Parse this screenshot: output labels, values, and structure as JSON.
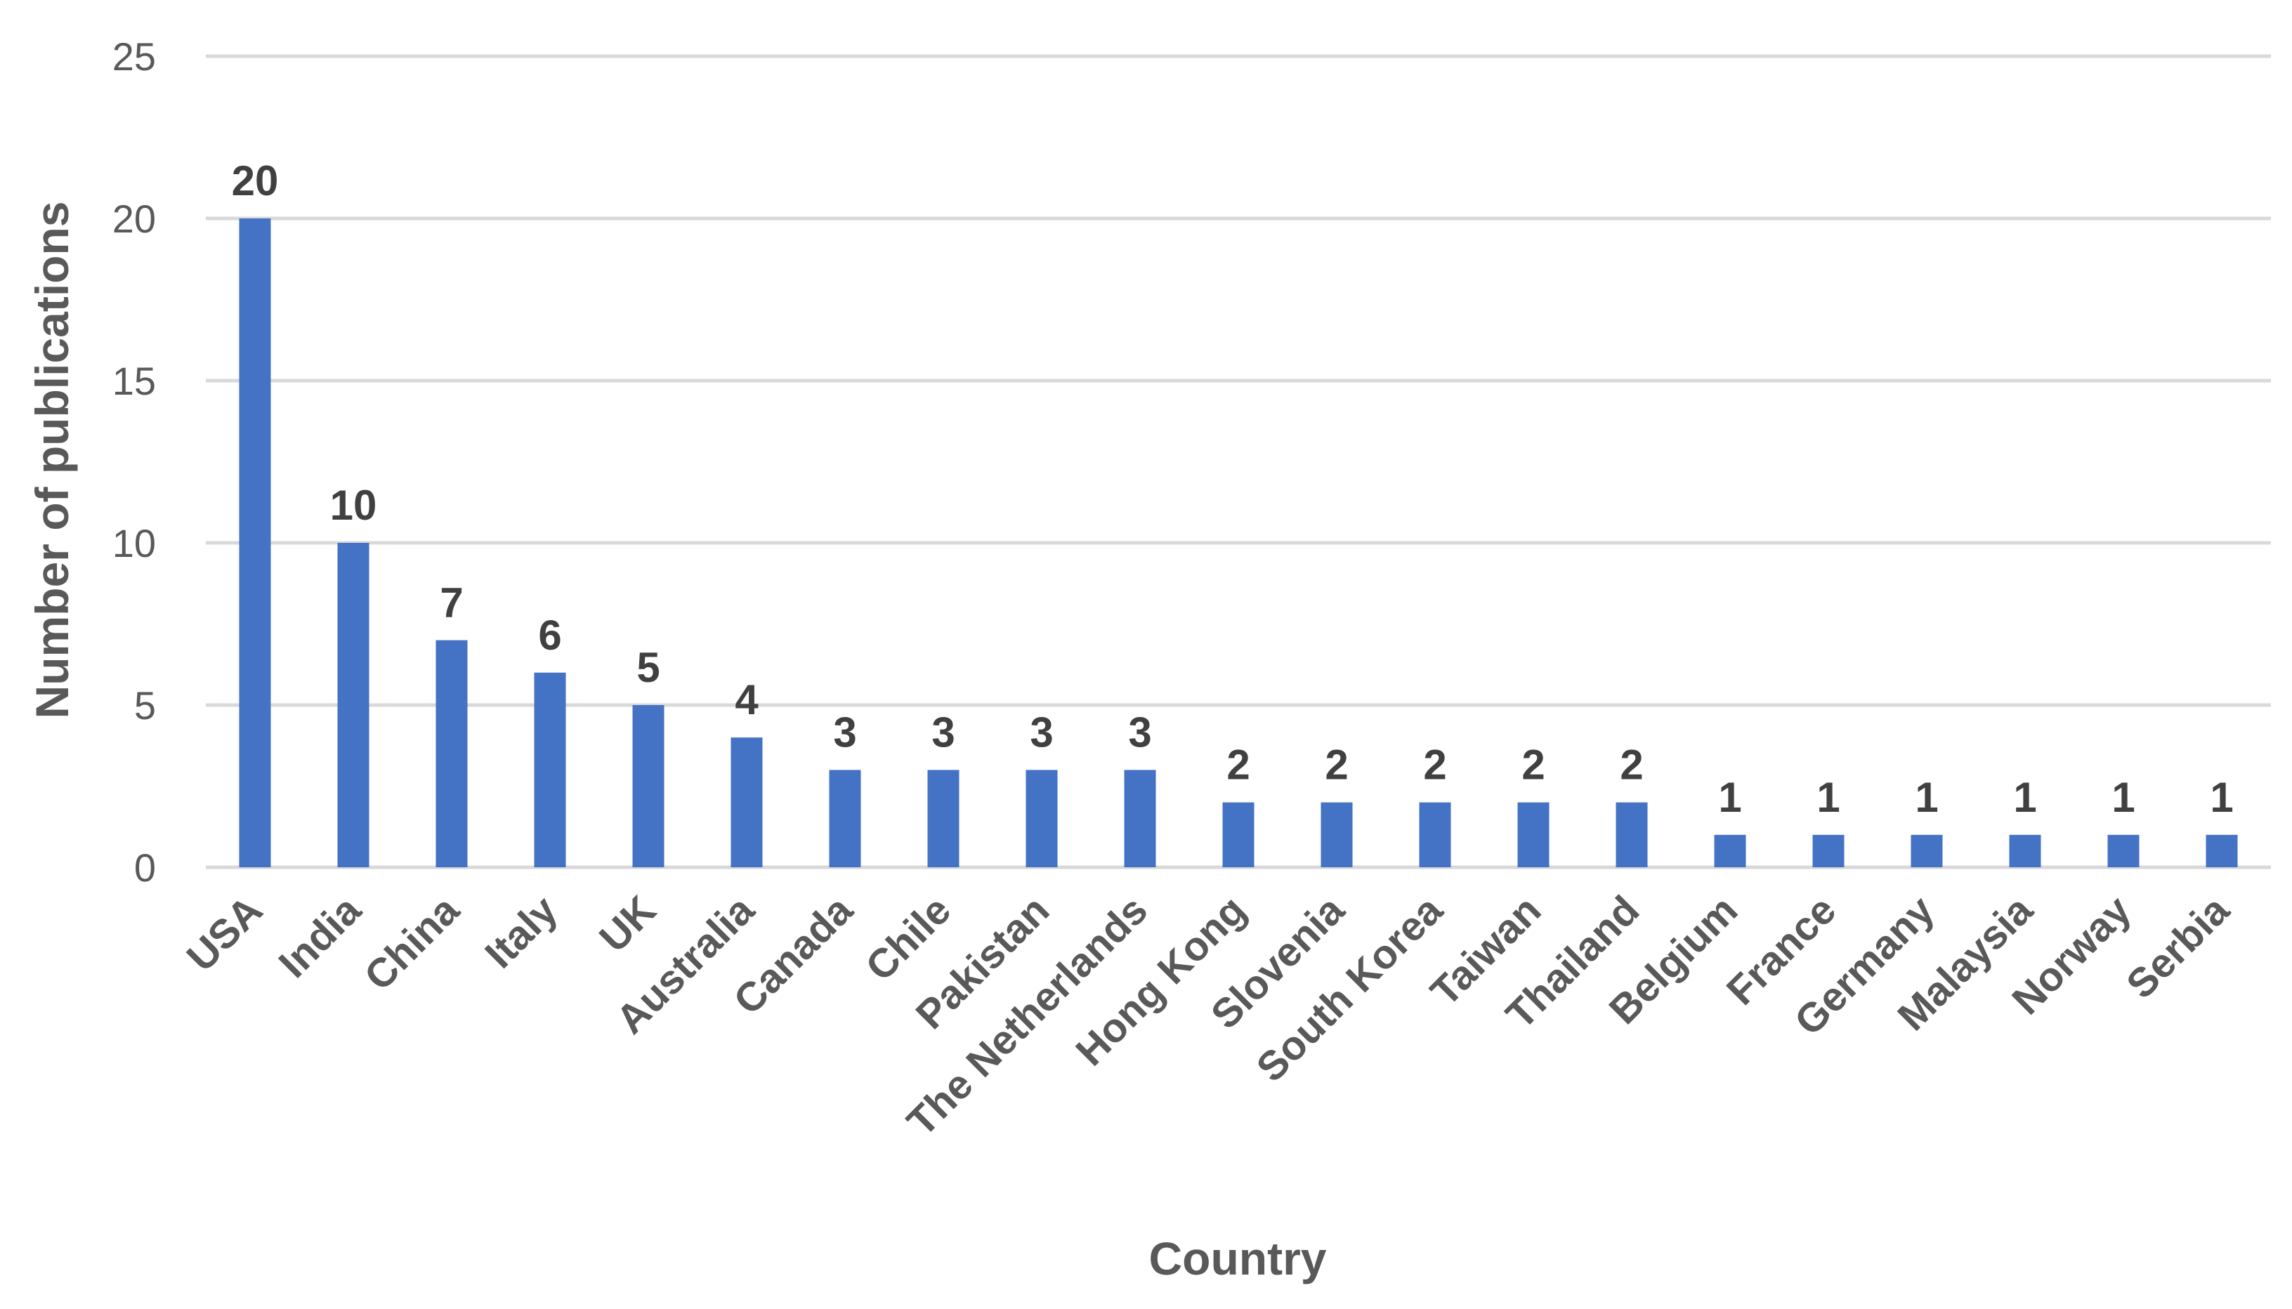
{
  "chart_data": {
    "type": "bar",
    "title": "",
    "xlabel": "Country",
    "ylabel": "Number of publications",
    "ylim": [
      0,
      25
    ],
    "yticks": [
      0,
      5,
      10,
      15,
      20,
      25
    ],
    "grid": true,
    "legend": "none",
    "bar_color": "#4472c4",
    "categories": [
      "USA",
      "India",
      "China",
      "Italy",
      "UK",
      "Australia",
      "Canada",
      "Chile",
      "Pakistan",
      "The Netherlands",
      "Hong Kong",
      "Slovenia",
      "South Korea",
      "Taiwan",
      "Thailand",
      "Belgium",
      "France",
      "Germany",
      "Malaysia",
      "Norway",
      "Serbia"
    ],
    "values": [
      20,
      10,
      7,
      6,
      5,
      4,
      3,
      3,
      3,
      3,
      2,
      2,
      2,
      2,
      2,
      1,
      1,
      1,
      1,
      1,
      1
    ]
  }
}
